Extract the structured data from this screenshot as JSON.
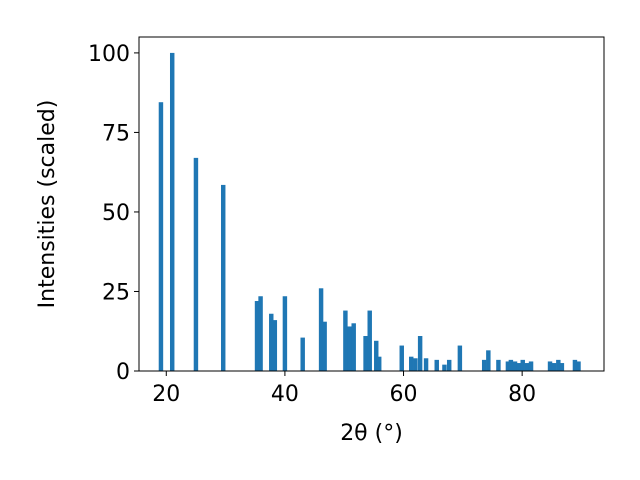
{
  "chart_data": {
    "type": "bar",
    "title": "",
    "xlabel": "2θ (°)",
    "ylabel": "Intensities (scaled)",
    "xlim": [
      15.4,
      93.8
    ],
    "ylim": [
      0,
      105
    ],
    "xticks": [
      20,
      40,
      60,
      80
    ],
    "yticks": [
      0,
      25,
      50,
      75,
      100
    ],
    "bar_width": 0.75,
    "grid": false,
    "legend": "none",
    "color": "#1f77b4",
    "series": [
      {
        "x": [
          19.1,
          21.0,
          25.0,
          29.6,
          35.3,
          35.9,
          37.7,
          38.3,
          40.0,
          43.0,
          46.1,
          46.7,
          50.2,
          50.9,
          51.6,
          53.6,
          54.3,
          55.4,
          55.9,
          59.7,
          61.3,
          62.0,
          62.8,
          63.8,
          65.6,
          66.9,
          67.7,
          69.5,
          73.6,
          74.3,
          76.0,
          77.6,
          78.1,
          78.8,
          79.5,
          80.1,
          80.8,
          81.5,
          84.7,
          85.4,
          86.1,
          86.7,
          88.9,
          89.5
        ],
        "y": [
          84.5,
          100,
          67,
          58.5,
          22,
          23.5,
          18,
          16,
          23.5,
          10.5,
          26,
          15.5,
          19,
          14,
          15,
          11,
          19,
          9.5,
          4.5,
          8,
          4.5,
          4,
          11,
          4,
          3.5,
          2,
          3.5,
          8,
          3.5,
          6.5,
          3.5,
          3,
          3.5,
          3,
          2.5,
          3.5,
          2.5,
          3,
          3,
          2.5,
          3.5,
          2.5,
          3.5,
          3
        ]
      }
    ]
  }
}
